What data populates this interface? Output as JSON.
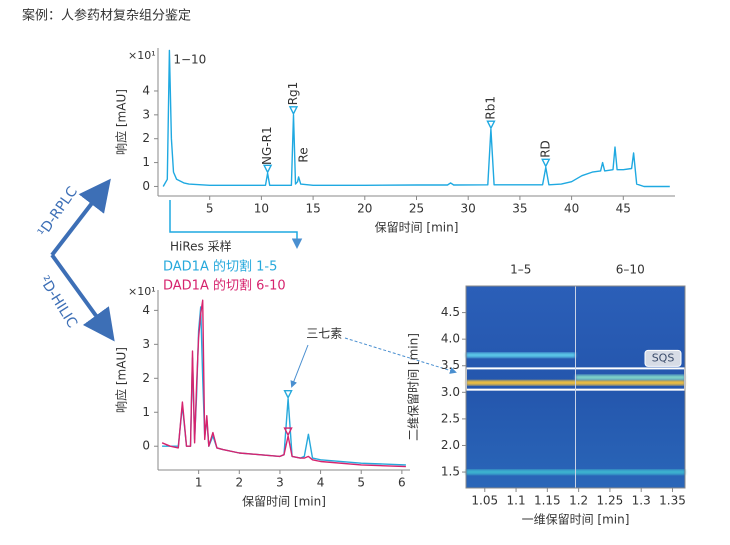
{
  "header": {
    "title": "案例：人参药材复杂组分鉴定"
  },
  "labels": {
    "hires": "HiRes 采样",
    "arrow_top": "¹D-RPLC",
    "arrow_bottom": "²D-HILIC"
  },
  "chart_data": [
    {
      "type": "line",
      "y_label": "响应 [mAU]",
      "x_label": "保留时间 [min]",
      "scale_label": "×10¹",
      "xlim": [
        0,
        50
      ],
      "ylim": [
        -0.4,
        5.8
      ],
      "xticks": [
        5,
        10,
        15,
        20,
        25,
        30,
        35,
        40,
        45
      ],
      "yticks": [
        0,
        1,
        2,
        3,
        4
      ],
      "x": [
        0.5,
        0.9,
        1.1,
        1.3,
        1.5,
        1.8,
        2.5,
        3,
        5,
        10,
        10.4,
        10.6,
        10.8,
        11.5,
        12.9,
        13.1,
        13.3,
        13.5,
        13.6,
        13.8,
        15,
        20,
        25,
        28,
        28.3,
        28.6,
        31.9,
        32.2,
        32.5,
        35,
        37.2,
        37.5,
        37.8,
        39,
        40,
        41,
        42,
        42.8,
        43,
        43.2,
        44,
        44.2,
        44.4,
        45,
        45.8,
        46,
        46.3,
        47,
        49.5
      ],
      "series": [
        {
          "color": "#1fa9e1",
          "values": [
            0,
            0.3,
            5.7,
            2,
            0.6,
            0.3,
            0.15,
            0.1,
            0.05,
            0.05,
            0.05,
            0.55,
            0.05,
            0.05,
            0.05,
            3.0,
            0.1,
            0.2,
            0.4,
            0.1,
            0.05,
            0.05,
            0.06,
            0.06,
            0.15,
            0.06,
            0.07,
            2.4,
            0.07,
            0.07,
            0.07,
            0.8,
            0.07,
            0.1,
            0.2,
            0.45,
            0.6,
            0.65,
            1.0,
            0.65,
            0.7,
            1.65,
            0.7,
            0.7,
            0.75,
            1.4,
            0.1,
            0.0,
            0.0
          ]
        }
      ],
      "markers": [
        {
          "x": 10.6,
          "y": 0.55,
          "color": "#1fa9e1"
        },
        {
          "x": 13.1,
          "y": 3.0,
          "color": "#1fa9e1"
        },
        {
          "x": 32.2,
          "y": 2.4,
          "color": "#1fa9e1"
        },
        {
          "x": 37.5,
          "y": 0.8,
          "color": "#1fa9e1"
        }
      ],
      "annotations": [
        {
          "text": "1−10",
          "x": 1.1,
          "y": 5.3,
          "vertical": false
        },
        {
          "text": "NG-R1",
          "x": 10.6,
          "y": 0.9,
          "vertical": true
        },
        {
          "text": "Rg1",
          "x": 13.1,
          "y": 3.4,
          "vertical": true
        },
        {
          "text": "Re",
          "x": 14.1,
          "y": 1.0,
          "vertical": true
        },
        {
          "text": "Rb1",
          "x": 32.2,
          "y": 2.8,
          "vertical": true
        },
        {
          "text": "RD",
          "x": 37.5,
          "y": 1.2,
          "vertical": true
        }
      ]
    },
    {
      "type": "line",
      "y_label": "响应 [mAU]",
      "x_label": "保留时间 [min]",
      "scale_label": "×10¹",
      "legend": "upper-left",
      "xlim": [
        0,
        6.2
      ],
      "ylim": [
        -0.7,
        4.6
      ],
      "xticks": [
        1,
        2,
        3,
        4,
        5,
        6
      ],
      "yticks": [
        0,
        1,
        2,
        3,
        4
      ],
      "x": [
        0.1,
        0.3,
        0.5,
        0.6,
        0.7,
        0.8,
        0.85,
        0.9,
        0.95,
        1.0,
        1.05,
        1.1,
        1.15,
        1.2,
        1.25,
        1.35,
        1.45,
        1.6,
        2,
        2.5,
        3,
        3.1,
        3.2,
        3.3,
        3.5,
        3.6,
        3.7,
        3.8,
        4,
        5,
        6.1
      ],
      "series": [
        {
          "name": "DAD1A 的切割 1-5",
          "color": "#27a9dc",
          "values": [
            0,
            0,
            0,
            1.2,
            0,
            0,
            2.6,
            0.2,
            1.5,
            3.4,
            4.1,
            2,
            0.3,
            0.8,
            0,
            0.3,
            -0.05,
            -0.1,
            -0.2,
            -0.25,
            -0.3,
            -0.25,
            1.4,
            -0.3,
            -0.35,
            -0.3,
            0.35,
            -0.35,
            -0.4,
            -0.5,
            -0.55
          ]
        },
        {
          "name": "DAD1A 的切割 6-10",
          "color": "#d6246e",
          "values": [
            0.1,
            0,
            -0.05,
            1.3,
            0,
            0,
            2.8,
            0.1,
            1.8,
            3.2,
            3.9,
            4.3,
            0.2,
            0.9,
            0,
            0.4,
            -0.05,
            -0.1,
            -0.2,
            -0.25,
            -0.3,
            -0.25,
            0.3,
            -0.3,
            -0.35,
            -0.35,
            -0.3,
            -0.4,
            -0.45,
            -0.55,
            -0.6
          ]
        }
      ],
      "markers": [
        {
          "x": 3.2,
          "y": 1.4,
          "color": "#27a9dc"
        },
        {
          "x": 3.2,
          "y": 0.3,
          "color": "#d6246e"
        }
      ],
      "annotations": [
        {
          "text": "三七素",
          "x": 3.55,
          "y": 3.3,
          "vertical": false
        }
      ]
    },
    {
      "type": "heatmap",
      "y_label": "二维保留时间 [min]",
      "x_label": "一维保留时间 [min]",
      "xlim": [
        1.02,
        1.37
      ],
      "ylim": [
        1.2,
        5.0
      ],
      "xticks": [
        1.05,
        1.1,
        1.15,
        1.2,
        1.25,
        1.3,
        1.35
      ],
      "yticks": [
        1.5,
        {
          "value": 2,
          "label": "2.0"
        },
        2.5,
        {
          "value": 3,
          "label": "3.0"
        },
        3.5,
        {
          "value": 4,
          "label": "4.0"
        },
        4.5
      ],
      "columns": [
        "1–5",
        "6–10"
      ],
      "divider": 1.195,
      "highlight": {
        "label": "SQS",
        "y": [
          3.05,
          3.45
        ]
      },
      "streaks": [
        {
          "y": 3.7,
          "x": [
            1.02,
            1.195
          ],
          "color": "#5cc8e8"
        },
        {
          "y": 3.18,
          "x": [
            1.02,
            1.37
          ],
          "color": "#f0c040"
        },
        {
          "y": 3.28,
          "x": [
            1.195,
            1.37
          ],
          "color": "#7fd3c8"
        },
        {
          "y": 1.5,
          "x": [
            1.02,
            1.37
          ],
          "color": "#3cb4d0"
        }
      ]
    }
  ]
}
